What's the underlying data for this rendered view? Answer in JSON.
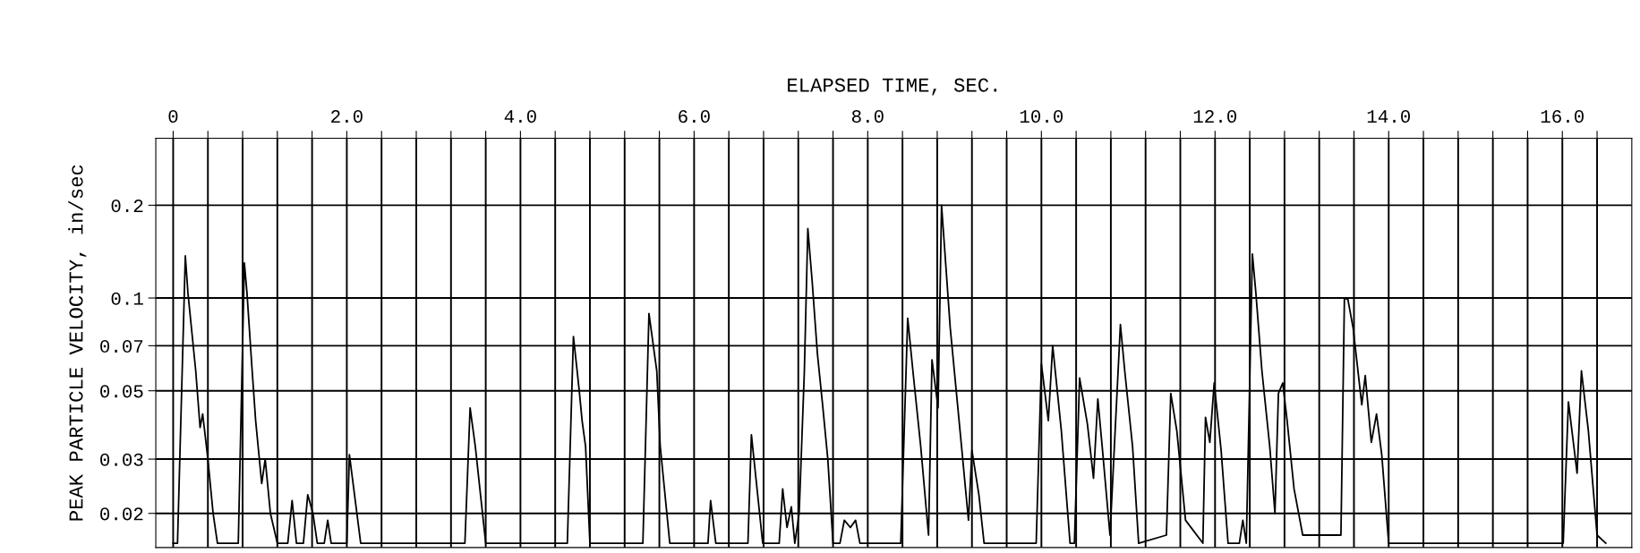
{
  "chart_data": {
    "type": "line",
    "xlabel": "ELAPSED TIME, SEC.",
    "ylabel": "PEAK PARTICLE VELOCITY, in/sec",
    "log": "y",
    "grid": true,
    "marker": "none",
    "line_style": "solid",
    "xlim": [
      -0.2,
      16.8
    ],
    "ylim": [
      0.0155,
      0.33
    ],
    "yticks": [
      0.02,
      0.03,
      0.05,
      0.07,
      0.1,
      0.2
    ],
    "xticks": [
      0,
      {
        "value": 0.4,
        "label": null
      },
      {
        "value": 0.8,
        "label": null
      },
      {
        "value": 1.2,
        "label": null
      },
      {
        "value": 1.6,
        "label": null
      },
      {
        "value": 2,
        "label": "2.0"
      },
      {
        "value": 2.4,
        "label": null
      },
      {
        "value": 2.8,
        "label": null
      },
      {
        "value": 3.2,
        "label": null
      },
      {
        "value": 3.6,
        "label": null
      },
      {
        "value": 4,
        "label": "4.0"
      },
      {
        "value": 4.4,
        "label": null
      },
      {
        "value": 4.8,
        "label": null
      },
      {
        "value": 5.2,
        "label": null
      },
      {
        "value": 5.6,
        "label": null
      },
      {
        "value": 6,
        "label": "6.0"
      },
      {
        "value": 6.4,
        "label": null
      },
      {
        "value": 6.8,
        "label": null
      },
      {
        "value": 7.2,
        "label": null
      },
      {
        "value": 7.6,
        "label": null
      },
      {
        "value": 8,
        "label": "8.0"
      },
      {
        "value": 8.4,
        "label": null
      },
      {
        "value": 8.8,
        "label": null
      },
      {
        "value": 9.2,
        "label": null
      },
      {
        "value": 9.6,
        "label": null
      },
      {
        "value": 10,
        "label": "10.0"
      },
      {
        "value": 10.4,
        "label": null
      },
      {
        "value": 10.8,
        "label": null
      },
      {
        "value": 11.2,
        "label": null
      },
      {
        "value": 11.6,
        "label": null
      },
      {
        "value": 12,
        "label": "12.0"
      },
      {
        "value": 12.4,
        "label": null
      },
      {
        "value": 12.8,
        "label": null
      },
      {
        "value": 13.2,
        "label": null
      },
      {
        "value": 13.6,
        "label": null
      },
      {
        "value": 14,
        "label": "14.0"
      },
      {
        "value": 14.4,
        "label": null
      },
      {
        "value": 14.8,
        "label": null
      },
      {
        "value": 15.2,
        "label": null
      },
      {
        "value": 15.6,
        "label": null
      },
      {
        "value": 16,
        "label": "16.0"
      },
      {
        "value": 16.4,
        "label": null
      }
    ],
    "series": [
      {
        "color": "#000000",
        "x": [
          0.0,
          0.05,
          0.14,
          0.17,
          0.26,
          0.31,
          0.34,
          0.4,
          0.46,
          0.51,
          0.75,
          0.82,
          0.85,
          0.91,
          0.95,
          1.02,
          1.06,
          1.12,
          1.2,
          1.32,
          1.37,
          1.42,
          1.5,
          1.55,
          1.61,
          1.66,
          1.74,
          1.78,
          1.82,
          2.0,
          2.03,
          2.16,
          3.36,
          3.42,
          3.48,
          3.6,
          4.54,
          4.61,
          4.65,
          4.68,
          4.71,
          4.75,
          4.8,
          5.41,
          5.48,
          5.57,
          5.61,
          5.72,
          6.16,
          6.19,
          6.25,
          6.62,
          6.66,
          6.79,
          6.98,
          7.02,
          7.07,
          7.12,
          7.16,
          7.21,
          7.27,
          7.31,
          7.36,
          7.42,
          7.48,
          7.54,
          7.6,
          7.68,
          7.73,
          7.8,
          7.86,
          7.91,
          8.38,
          8.46,
          8.52,
          8.61,
          8.7,
          8.74,
          8.81,
          8.85,
          8.95,
          9.08,
          9.16,
          9.2,
          9.28,
          9.34,
          9.94,
          10.0,
          10.08,
          10.13,
          10.23,
          10.33,
          10.38,
          10.44,
          10.53,
          10.6,
          10.65,
          10.7,
          10.79,
          10.91,
          10.96,
          11.05,
          11.12,
          11.44,
          11.49,
          11.56,
          11.66,
          11.86,
          11.89,
          11.94,
          11.99,
          12.07,
          12.15,
          12.28,
          12.32,
          12.36,
          12.43,
          12.47,
          12.54,
          12.63,
          12.69,
          12.73,
          12.78,
          12.83,
          12.91,
          13.01,
          13.45,
          13.49,
          13.53,
          13.59,
          13.69,
          13.73,
          13.8,
          13.86,
          13.92,
          14.0,
          16.01,
          16.07,
          16.17,
          16.22,
          16.3,
          16.4,
          16.5
        ],
        "values": [
          0.016,
          0.016,
          0.137,
          0.104,
          0.058,
          0.038,
          0.042,
          0.03,
          0.02,
          0.016,
          0.016,
          0.13,
          0.104,
          0.058,
          0.04,
          0.025,
          0.03,
          0.02,
          0.016,
          0.016,
          0.022,
          0.016,
          0.016,
          0.023,
          0.02,
          0.016,
          0.016,
          0.019,
          0.016,
          0.016,
          0.031,
          0.016,
          0.016,
          0.044,
          0.033,
          0.016,
          0.016,
          0.075,
          0.059,
          0.049,
          0.04,
          0.033,
          0.016,
          0.016,
          0.089,
          0.058,
          0.033,
          0.016,
          0.016,
          0.022,
          0.016,
          0.016,
          0.036,
          0.016,
          0.016,
          0.024,
          0.018,
          0.021,
          0.016,
          0.02,
          0.058,
          0.168,
          0.113,
          0.066,
          0.045,
          0.03,
          0.016,
          0.016,
          0.019,
          0.018,
          0.019,
          0.016,
          0.016,
          0.086,
          0.058,
          0.033,
          0.017,
          0.063,
          0.044,
          0.2,
          0.08,
          0.033,
          0.019,
          0.032,
          0.023,
          0.016,
          0.016,
          0.061,
          0.04,
          0.07,
          0.037,
          0.016,
          0.016,
          0.055,
          0.039,
          0.026,
          0.047,
          0.033,
          0.017,
          0.082,
          0.058,
          0.033,
          0.016,
          0.017,
          0.049,
          0.037,
          0.019,
          0.016,
          0.041,
          0.034,
          0.053,
          0.032,
          0.016,
          0.016,
          0.019,
          0.016,
          0.139,
          0.104,
          0.058,
          0.033,
          0.02,
          0.049,
          0.053,
          0.04,
          0.024,
          0.017,
          0.017,
          0.1,
          0.099,
          0.08,
          0.045,
          0.056,
          0.034,
          0.042,
          0.031,
          0.016,
          0.016,
          0.046,
          0.027,
          0.058,
          0.037,
          0.017,
          0.016
        ]
      }
    ]
  }
}
